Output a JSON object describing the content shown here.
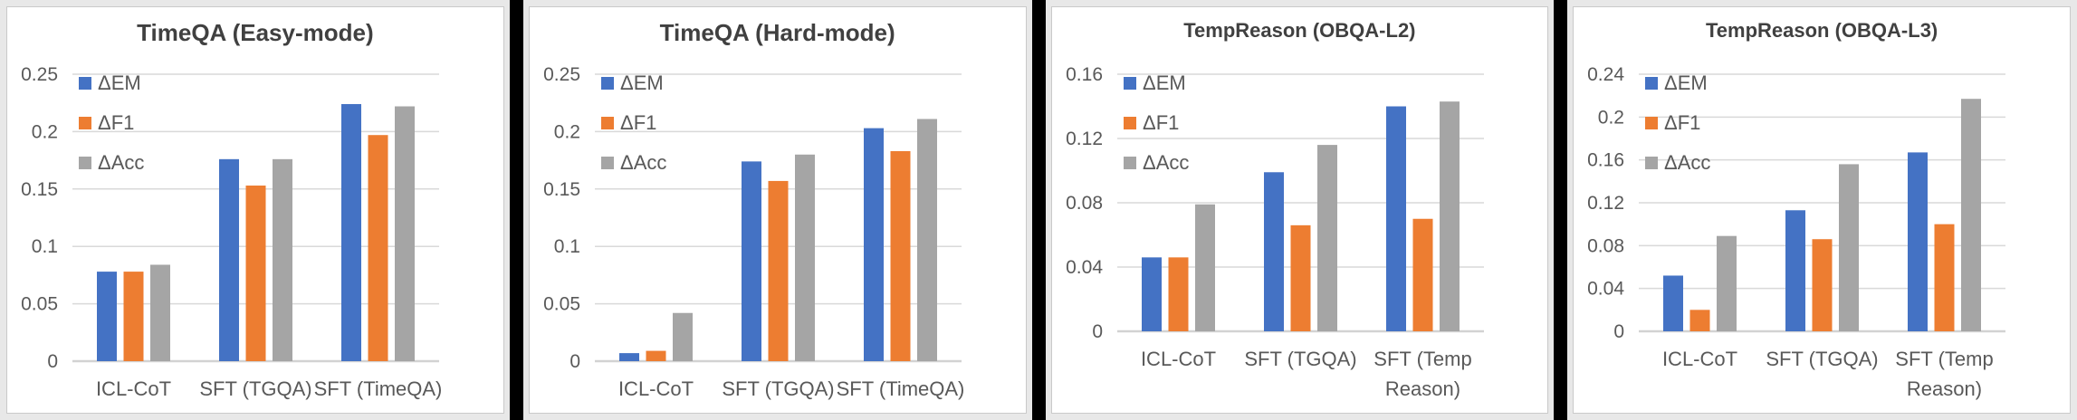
{
  "page": {
    "background_color": "#E8E8E8",
    "separator_color": "#000000",
    "panel_background": "#FFFFFF",
    "panel_border_color": "#C9C9C9",
    "title_color": "#404040",
    "axis_text_color": "#595959",
    "gridline_color": "#D9D9D9",
    "baseline_color": "#D2D2D2"
  },
  "legend": {
    "items": [
      "ΔEM",
      "ΔF1",
      "ΔAcc"
    ],
    "colors": {
      "em": "#4472C4",
      "f1": "#ED7D31",
      "acc": "#A5A5A5"
    },
    "position": "top-left-vertical"
  },
  "chart_data": [
    {
      "type": "bar",
      "title": "TimeQA (Easy-mode)",
      "categories": [
        "ICL-CoT",
        "SFT (TGQA)",
        "SFT (TimeQA)"
      ],
      "series": [
        {
          "name": "ΔEM",
          "color": "#4472C4",
          "values": [
            0.078,
            0.176,
            0.224
          ]
        },
        {
          "name": "ΔF1",
          "color": "#ED7D31",
          "values": [
            0.078,
            0.153,
            0.197
          ]
        },
        {
          "name": "ΔAcc",
          "color": "#A5A5A5",
          "values": [
            0.084,
            0.176,
            0.222
          ]
        }
      ],
      "ylim": [
        0,
        0.25
      ],
      "yticks": [
        0,
        0.05,
        0.1,
        0.15,
        0.2,
        0.25
      ],
      "ytick_labels": [
        "0",
        "0.05",
        "0.1",
        "0.15",
        "0.2",
        "0.25"
      ],
      "xlabel": "",
      "ylabel": "",
      "grid": true,
      "legend_position": "top-left"
    },
    {
      "type": "bar",
      "title": "TimeQA (Hard-mode)",
      "categories": [
        "ICL-CoT",
        "SFT (TGQA)",
        "SFT (TimeQA)"
      ],
      "series": [
        {
          "name": "ΔEM",
          "color": "#4472C4",
          "values": [
            0.007,
            0.174,
            0.203
          ]
        },
        {
          "name": "ΔF1",
          "color": "#ED7D31",
          "values": [
            0.009,
            0.157,
            0.183
          ]
        },
        {
          "name": "ΔAcc",
          "color": "#A5A5A5",
          "values": [
            0.042,
            0.18,
            0.211
          ]
        }
      ],
      "ylim": [
        0,
        0.25
      ],
      "yticks": [
        0,
        0.05,
        0.1,
        0.15,
        0.2,
        0.25
      ],
      "ytick_labels": [
        "0",
        "0.05",
        "0.1",
        "0.15",
        "0.2",
        "0.25"
      ],
      "xlabel": "",
      "ylabel": "",
      "grid": true,
      "legend_position": "top-left"
    },
    {
      "type": "bar",
      "title": "TempReason (OBQA-L2)",
      "categories": [
        "ICL-CoT",
        "SFT (TGQA)",
        "SFT (Temp\nReason)"
      ],
      "series": [
        {
          "name": "ΔEM",
          "color": "#4472C4",
          "values": [
            0.046,
            0.099,
            0.14
          ]
        },
        {
          "name": "ΔF1",
          "color": "#ED7D31",
          "values": [
            0.046,
            0.066,
            0.07
          ]
        },
        {
          "name": "ΔAcc",
          "color": "#A5A5A5",
          "values": [
            0.079,
            0.116,
            0.143
          ]
        }
      ],
      "ylim": [
        0,
        0.16
      ],
      "yticks": [
        0,
        0.04,
        0.08,
        0.12,
        0.16
      ],
      "ytick_labels": [
        "0",
        "0.04",
        "0.08",
        "0.12",
        "0.16"
      ],
      "xlabel": "",
      "ylabel": "",
      "grid": true,
      "legend_position": "top-left"
    },
    {
      "type": "bar",
      "title": "TempReason (OBQA-L3)",
      "categories": [
        "ICL-CoT",
        "SFT (TGQA)",
        "SFT (Temp\nReason)"
      ],
      "series": [
        {
          "name": "ΔEM",
          "color": "#4472C4",
          "values": [
            0.052,
            0.113,
            0.167
          ]
        },
        {
          "name": "ΔF1",
          "color": "#ED7D31",
          "values": [
            0.02,
            0.086,
            0.1
          ]
        },
        {
          "name": "ΔAcc",
          "color": "#A5A5A5",
          "values": [
            0.089,
            0.156,
            0.217
          ]
        }
      ],
      "ylim": [
        0,
        0.24
      ],
      "yticks": [
        0,
        0.04,
        0.08,
        0.12,
        0.16,
        0.2,
        0.24
      ],
      "ytick_labels": [
        "0",
        "0.04",
        "0.08",
        "0.12",
        "0.16",
        "0.2",
        "0.24"
      ],
      "xlabel": "",
      "ylabel": "",
      "grid": true,
      "legend_position": "top-left"
    }
  ]
}
